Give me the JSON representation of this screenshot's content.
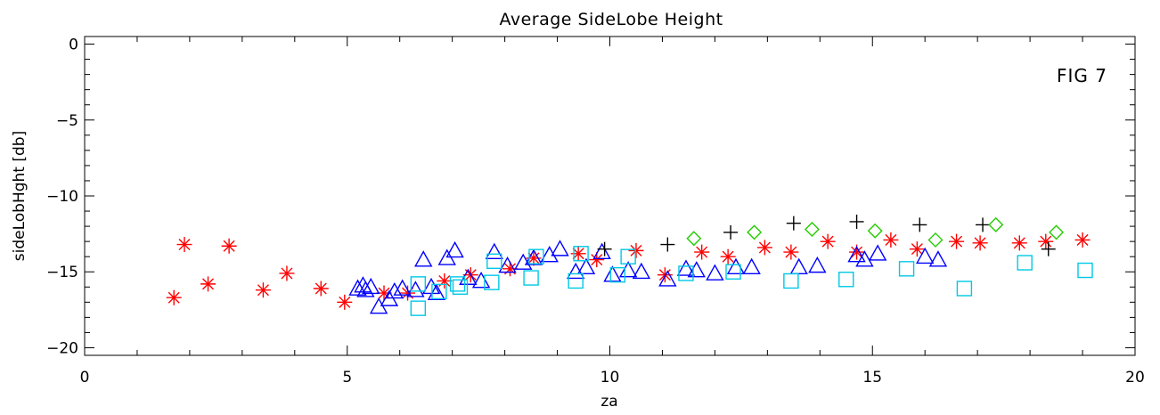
{
  "chart_data": {
    "type": "scatter",
    "title": "Average SideLobe Height",
    "xlabel": "za",
    "ylabel": "sideLobHght [db]",
    "annotation": "FIG  7",
    "xlim": [
      0,
      20
    ],
    "ylim": [
      -20.5,
      0.5
    ],
    "xticks": [
      0,
      5,
      10,
      15,
      20
    ],
    "yticks": [
      0,
      -5,
      -10,
      -15,
      -20
    ],
    "grid": false,
    "legend": "none",
    "series": [
      {
        "marker": "asterisk",
        "color": "#ff0000",
        "points": [
          [
            1.7,
            -16.7
          ],
          [
            1.9,
            -13.2
          ],
          [
            2.35,
            -15.8
          ],
          [
            2.75,
            -13.3
          ],
          [
            3.4,
            -16.2
          ],
          [
            3.85,
            -15.1
          ],
          [
            4.5,
            -16.1
          ],
          [
            4.95,
            -17.0
          ],
          [
            5.7,
            -16.4
          ],
          [
            6.15,
            -16.4
          ],
          [
            6.85,
            -15.6
          ],
          [
            7.35,
            -15.2
          ],
          [
            8.1,
            -14.8
          ],
          [
            8.55,
            -14.1
          ],
          [
            9.4,
            -13.8
          ],
          [
            9.75,
            -14.2
          ],
          [
            10.5,
            -13.6
          ],
          [
            11.05,
            -15.2
          ],
          [
            11.75,
            -13.7
          ],
          [
            12.25,
            -14.0
          ],
          [
            12.95,
            -13.4
          ],
          [
            13.45,
            -13.7
          ],
          [
            14.15,
            -13.0
          ],
          [
            14.7,
            -13.7
          ],
          [
            15.35,
            -12.9
          ],
          [
            15.85,
            -13.5
          ],
          [
            16.6,
            -13.0
          ],
          [
            17.05,
            -13.1
          ],
          [
            17.8,
            -13.1
          ],
          [
            18.3,
            -13.0
          ],
          [
            19.0,
            -12.9
          ]
        ]
      },
      {
        "marker": "triangle",
        "color": "#0000ff",
        "points": [
          [
            5.2,
            -16.1
          ],
          [
            5.3,
            -15.9
          ],
          [
            5.35,
            -16.2
          ],
          [
            5.45,
            -16.0
          ],
          [
            5.6,
            -17.3
          ],
          [
            5.8,
            -16.8
          ],
          [
            5.9,
            -16.3
          ],
          [
            6.05,
            -16.1
          ],
          [
            6.3,
            -16.2
          ],
          [
            6.45,
            -14.2
          ],
          [
            6.6,
            -16.0
          ],
          [
            6.7,
            -16.4
          ],
          [
            6.9,
            -14.1
          ],
          [
            7.05,
            -13.6
          ],
          [
            7.3,
            -15.4
          ],
          [
            7.55,
            -15.6
          ],
          [
            7.8,
            -13.7
          ],
          [
            8.05,
            -14.6
          ],
          [
            8.35,
            -14.4
          ],
          [
            8.55,
            -14.1
          ],
          [
            8.85,
            -13.9
          ],
          [
            9.05,
            -13.5
          ],
          [
            9.35,
            -15.0
          ],
          [
            9.55,
            -14.7
          ],
          [
            9.85,
            -13.7
          ],
          [
            10.05,
            -15.2
          ],
          [
            10.35,
            -14.9
          ],
          [
            10.6,
            -15.0
          ],
          [
            11.1,
            -15.5
          ],
          [
            11.45,
            -14.8
          ],
          [
            11.65,
            -14.9
          ],
          [
            12.0,
            -15.1
          ],
          [
            12.4,
            -14.7
          ],
          [
            12.7,
            -14.7
          ],
          [
            13.6,
            -14.7
          ],
          [
            13.95,
            -14.6
          ],
          [
            14.7,
            -13.9
          ],
          [
            14.85,
            -14.2
          ],
          [
            15.1,
            -13.8
          ],
          [
            16.0,
            -14.0
          ],
          [
            16.25,
            -14.2
          ]
        ]
      },
      {
        "marker": "square",
        "color": "#00c8e6",
        "points": [
          [
            6.35,
            -15.8
          ],
          [
            6.35,
            -17.4
          ],
          [
            6.75,
            -16.3
          ],
          [
            7.1,
            -15.8
          ],
          [
            7.15,
            -16.0
          ],
          [
            7.75,
            -15.7
          ],
          [
            7.8,
            -14.3
          ],
          [
            8.5,
            -15.4
          ],
          [
            8.6,
            -14.0
          ],
          [
            9.35,
            -15.6
          ],
          [
            9.45,
            -13.8
          ],
          [
            10.15,
            -15.2
          ],
          [
            10.35,
            -14.0
          ],
          [
            11.45,
            -15.1
          ],
          [
            12.35,
            -15.0
          ],
          [
            13.45,
            -15.6
          ],
          [
            14.5,
            -15.5
          ],
          [
            15.65,
            -14.8
          ],
          [
            16.75,
            -16.1
          ],
          [
            17.9,
            -14.4
          ],
          [
            19.05,
            -14.9
          ]
        ]
      },
      {
        "marker": "plus",
        "color": "#000000",
        "points": [
          [
            9.9,
            -13.5
          ],
          [
            11.1,
            -13.2
          ],
          [
            12.3,
            -12.4
          ],
          [
            13.5,
            -11.8
          ],
          [
            14.7,
            -11.7
          ],
          [
            15.9,
            -11.9
          ],
          [
            17.1,
            -11.9
          ],
          [
            18.35,
            -13.5
          ]
        ]
      },
      {
        "marker": "diamond",
        "color": "#22cc00",
        "points": [
          [
            11.6,
            -12.8
          ],
          [
            12.75,
            -12.4
          ],
          [
            13.85,
            -12.2
          ],
          [
            15.05,
            -12.3
          ],
          [
            16.2,
            -12.9
          ],
          [
            17.35,
            -11.9
          ],
          [
            18.5,
            -12.4
          ]
        ]
      }
    ]
  }
}
